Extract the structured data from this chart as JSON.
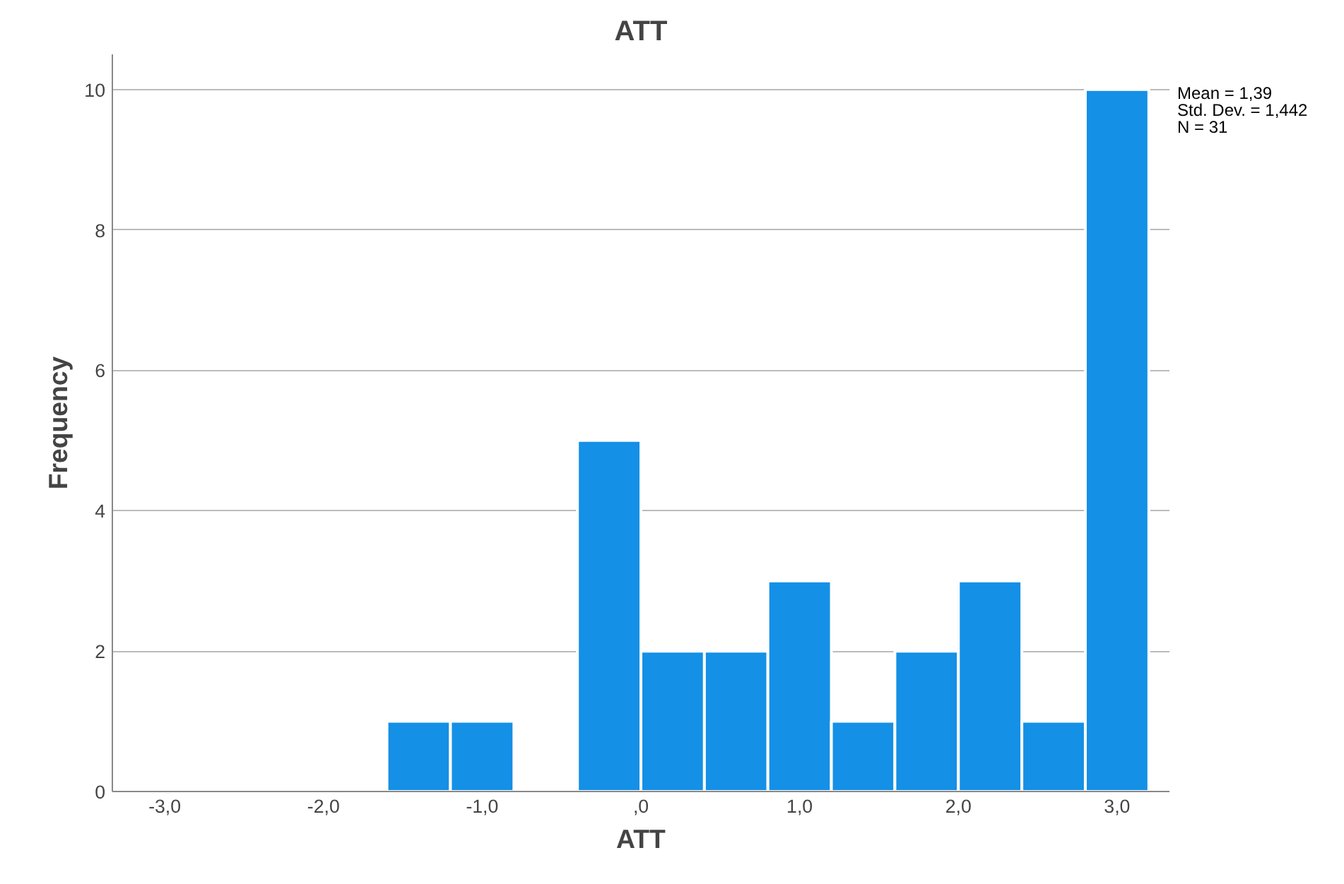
{
  "chart_data": {
    "type": "histogram",
    "title": "ATT",
    "xlabel": "ATT",
    "ylabel": "Frequency",
    "bins": [
      -1.6,
      -1.2,
      -0.8,
      -0.4,
      0,
      0.4,
      0.8,
      1.2,
      1.6,
      2.0,
      2.4,
      2.8,
      3.2
    ],
    "values": [
      1,
      1,
      0,
      5,
      2,
      2,
      3,
      1,
      2,
      3,
      1,
      10
    ],
    "color": "#1490e6",
    "xlim": [
      -3.33,
      3.33
    ],
    "xticks": [
      {
        "value": -3,
        "label": "-3,0"
      },
      {
        "value": -2,
        "label": "-2,0"
      },
      {
        "value": -1,
        "label": "-1,0"
      },
      {
        "value": 0,
        "label": ",0"
      },
      {
        "value": 1,
        "label": "1,0"
      },
      {
        "value": 2,
        "label": "2,0"
      },
      {
        "value": 3,
        "label": "3,0"
      }
    ],
    "ylim": [
      0,
      10.5
    ],
    "yticks": [
      0,
      2,
      4,
      6,
      8,
      10
    ],
    "grid": "y",
    "annotations": [
      "Mean = 1,39",
      "Std. Dev. = 1,442",
      "N = 31"
    ]
  }
}
